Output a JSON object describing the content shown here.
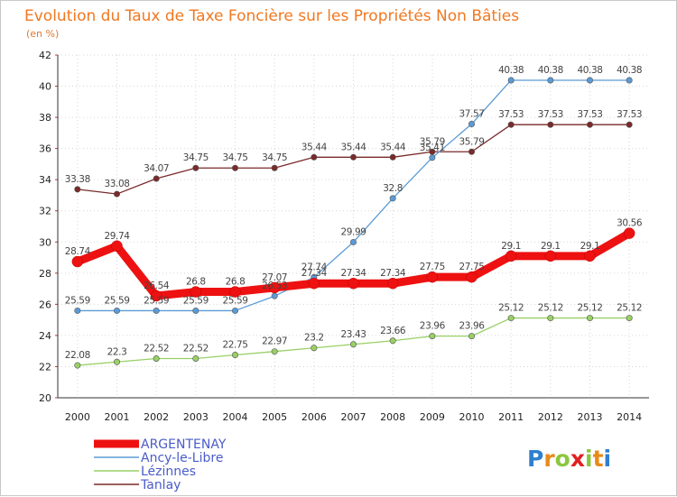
{
  "chart_data": {
    "type": "line",
    "title": "Evolution du Taux de Taxe Foncière sur les Propriétés Non Bâties",
    "subtitle": "(en %)",
    "xlabel": "",
    "ylabel": "",
    "x": [
      "2000",
      "2001",
      "2002",
      "2003",
      "2004",
      "2005",
      "2006",
      "2007",
      "2008",
      "2009",
      "2010",
      "2011",
      "2012",
      "2013",
      "2014"
    ],
    "ylim": [
      20,
      42
    ],
    "yticks": [
      "20",
      "22",
      "24",
      "26",
      "28",
      "30",
      "32",
      "34",
      "36",
      "38",
      "40",
      "42"
    ],
    "grid": true,
    "legend_position": "bottom-left",
    "series": [
      {
        "name": "ARGENTENAY",
        "color": "#ee1111",
        "values": [
          28.74,
          29.74,
          26.54,
          26.8,
          26.8,
          27.07,
          27.34,
          27.34,
          27.34,
          27.75,
          27.75,
          29.1,
          29.1,
          29.1,
          30.56
        ],
        "labels": [
          "28.74",
          "29.74",
          "26.54",
          "26.8",
          "26.8",
          "27.07",
          "27.34",
          "27.34",
          "27.34",
          "27.75",
          "27.75",
          "29.1",
          "29.1",
          "29.1",
          "30.56"
        ]
      },
      {
        "name": "Ancy-le-Libre",
        "color": "#5b9bd5",
        "values": [
          25.59,
          25.59,
          25.59,
          25.59,
          25.59,
          26.53,
          27.74,
          29.99,
          32.8,
          35.41,
          37.57,
          40.38,
          40.38,
          40.38,
          40.38
        ],
        "labels": [
          "25.59",
          "25.59",
          "25.59",
          "25.59",
          "25.59",
          "26.53",
          "27.74",
          "29.99",
          "32.8",
          "35.41",
          "37.57",
          "40.38",
          "40.38",
          "40.38",
          "40.38"
        ]
      },
      {
        "name": "Lézinnes",
        "color": "#99d066",
        "values": [
          22.08,
          22.3,
          22.52,
          22.52,
          22.75,
          22.97,
          23.2,
          23.43,
          23.66,
          23.96,
          23.96,
          25.12,
          25.12,
          25.12,
          25.12
        ],
        "labels": [
          "22.08",
          "22.3",
          "22.52",
          "22.52",
          "22.75",
          "22.97",
          "23.2",
          "23.43",
          "23.66",
          "23.96",
          "23.96",
          "25.12",
          "25.12",
          "25.12",
          "25.12"
        ]
      },
      {
        "name": "Tanlay",
        "color": "#7a2a2a",
        "values": [
          33.38,
          33.08,
          34.07,
          34.75,
          34.75,
          34.75,
          35.44,
          35.44,
          35.44,
          35.79,
          35.79,
          37.53,
          37.53,
          37.53,
          37.53
        ],
        "labels": [
          "33.38",
          "33.08",
          "34.07",
          "34.75",
          "34.75",
          "34.75",
          "35.44",
          "35.44",
          "35.44",
          "35.79",
          "35.79",
          "37.53",
          "37.53",
          "37.53",
          "37.53"
        ]
      }
    ]
  },
  "brand": {
    "letters": [
      "P",
      "r",
      "o",
      "x",
      "i",
      "t",
      "i"
    ],
    "colors": [
      "#2f7fd0",
      "#e88a1a",
      "#8cc63f",
      "#e02020",
      "#8cc63f",
      "#e88a1a",
      "#2f7fd0"
    ]
  }
}
